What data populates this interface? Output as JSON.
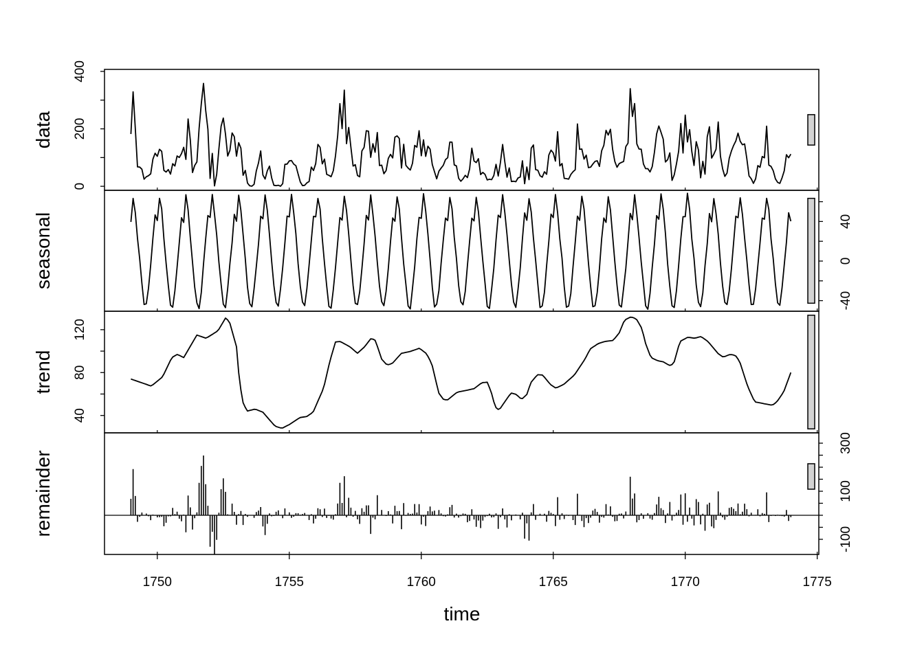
{
  "chart_data": {
    "type": "line",
    "title": "",
    "xlabel": "time",
    "xlim": [
      1748,
      1775.06
    ],
    "x_ticks": [
      1750,
      1755,
      1760,
      1765,
      1770,
      1775
    ],
    "start": 1749.0,
    "end": 1774.0,
    "frequency": 12,
    "scale_bar_range": 106,
    "panels": [
      {
        "name": "data",
        "label": "data",
        "ylim": [
          -14,
          407
        ],
        "ticks": [
          0,
          100,
          200,
          300,
          400
        ],
        "tick_labels": [
          0,
          200,
          400
        ],
        "axis_side": "left"
      },
      {
        "name": "seasonal",
        "label": "seasonal",
        "ylim": [
          -50.7,
          71.5
        ],
        "ticks": [
          -40,
          -20,
          0,
          20,
          40,
          60
        ],
        "tick_labels": [
          -40,
          0,
          40
        ],
        "axis_side": "right"
      },
      {
        "name": "trend",
        "label": "trend",
        "ylim": [
          23.8,
          137.2
        ],
        "ticks": [
          40,
          60,
          80,
          100,
          120
        ],
        "tick_labels": [
          40,
          80,
          120
        ],
        "axis_side": "left"
      },
      {
        "name": "remainder",
        "label": "remainder",
        "ylim": [
          -163,
          343
        ],
        "ticks": [
          -100,
          -50,
          0,
          50,
          100,
          150,
          200,
          250,
          300
        ],
        "tick_labels": [
          -100,
          100,
          300
        ],
        "axis_side": "right"
      }
    ],
    "seasonal_profile_monthly": [
      42,
      66,
      50,
      25,
      0,
      -25,
      -44,
      -46,
      -30,
      -5,
      20,
      46
    ],
    "trend": [
      [
        1749.0,
        74
      ],
      [
        1749.77,
        67.4
      ],
      [
        1750.2,
        76
      ],
      [
        1750.55,
        94
      ],
      [
        1750.76,
        97
      ],
      [
        1751.0,
        94
      ],
      [
        1751.5,
        115
      ],
      [
        1751.85,
        112
      ],
      [
        1752.3,
        119
      ],
      [
        1752.6,
        131.5
      ],
      [
        1752.75,
        126
      ],
      [
        1753.0,
        104
      ],
      [
        1753.1,
        75
      ],
      [
        1753.23,
        53
      ],
      [
        1753.4,
        44
      ],
      [
        1753.7,
        46
      ],
      [
        1754.0,
        43
      ],
      [
        1754.46,
        30
      ],
      [
        1754.72,
        28
      ],
      [
        1755.0,
        31.5
      ],
      [
        1755.4,
        38
      ],
      [
        1755.66,
        39
      ],
      [
        1755.9,
        43
      ],
      [
        1756.3,
        65.5
      ],
      [
        1756.54,
        91
      ],
      [
        1756.75,
        108.5
      ],
      [
        1756.93,
        109
      ],
      [
        1757.3,
        104
      ],
      [
        1757.58,
        98
      ],
      [
        1757.85,
        104
      ],
      [
        1758.1,
        112
      ],
      [
        1758.26,
        110
      ],
      [
        1758.5,
        92.5
      ],
      [
        1758.7,
        87
      ],
      [
        1758.9,
        88.5
      ],
      [
        1759.25,
        98
      ],
      [
        1759.56,
        99.5
      ],
      [
        1759.93,
        102.7
      ],
      [
        1760.2,
        97.6
      ],
      [
        1760.4,
        88
      ],
      [
        1760.66,
        61
      ],
      [
        1760.85,
        54.6
      ],
      [
        1761.0,
        54.6
      ],
      [
        1761.36,
        61.7
      ],
      [
        1761.75,
        63.6
      ],
      [
        1762.0,
        65
      ],
      [
        1762.3,
        70.6
      ],
      [
        1762.5,
        71
      ],
      [
        1762.65,
        62
      ],
      [
        1762.8,
        48
      ],
      [
        1762.95,
        45
      ],
      [
        1763.2,
        54
      ],
      [
        1763.4,
        61
      ],
      [
        1763.6,
        59.6
      ],
      [
        1763.8,
        55
      ],
      [
        1764.0,
        59.6
      ],
      [
        1764.15,
        70.6
      ],
      [
        1764.4,
        78
      ],
      [
        1764.6,
        77.7
      ],
      [
        1764.9,
        68.7
      ],
      [
        1765.1,
        65.5
      ],
      [
        1765.4,
        69
      ],
      [
        1765.8,
        77.7
      ],
      [
        1766.2,
        92.4
      ],
      [
        1766.4,
        102
      ],
      [
        1766.7,
        107
      ],
      [
        1766.96,
        109
      ],
      [
        1767.27,
        110
      ],
      [
        1767.5,
        117
      ],
      [
        1767.7,
        129
      ],
      [
        1767.95,
        132
      ],
      [
        1768.15,
        130
      ],
      [
        1768.36,
        121
      ],
      [
        1768.5,
        107
      ],
      [
        1768.7,
        94
      ],
      [
        1768.96,
        91
      ],
      [
        1769.17,
        90
      ],
      [
        1769.4,
        86.6
      ],
      [
        1769.56,
        88
      ],
      [
        1769.8,
        109
      ],
      [
        1770.1,
        113
      ],
      [
        1770.35,
        112
      ],
      [
        1770.6,
        113.6
      ],
      [
        1770.86,
        109
      ],
      [
        1771.25,
        97.6
      ],
      [
        1771.44,
        94.4
      ],
      [
        1771.7,
        97
      ],
      [
        1771.9,
        96
      ],
      [
        1772.06,
        90.5
      ],
      [
        1772.37,
        66.8
      ],
      [
        1772.63,
        52.7
      ],
      [
        1772.9,
        51.4
      ],
      [
        1773.3,
        49.5
      ],
      [
        1773.47,
        52.7
      ],
      [
        1773.73,
        62
      ],
      [
        1774.07,
        84.7
      ]
    ],
    "remainder_spikes": [
      [
        1749.1,
        150
      ],
      [
        1751.7,
        330
      ],
      [
        1752.5,
        170
      ],
      [
        1752.15,
        -150
      ],
      [
        1756.95,
        200
      ],
      [
        1757.95,
        170
      ],
      [
        1767.95,
        190
      ],
      [
        1764.0,
        -110
      ]
    ],
    "remainder_noise_scale": 0.4
  }
}
